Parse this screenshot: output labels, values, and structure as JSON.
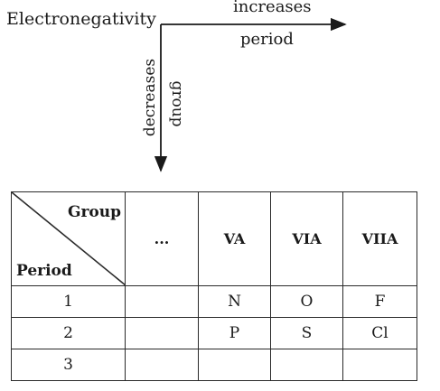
{
  "trend": {
    "title": "Electronegativity",
    "horizontal_top": "increases",
    "horizontal_bottom": "period",
    "vertical_left": "decreases",
    "vertical_right": "group"
  },
  "table": {
    "corner_group": "Group",
    "corner_period": "Period",
    "headers": [
      "...",
      "VA",
      "VIA",
      "VIIA"
    ],
    "rows": [
      {
        "period": "1",
        "cells": [
          "",
          "N",
          "O",
          "F"
        ]
      },
      {
        "period": "2",
        "cells": [
          "",
          "P",
          "S",
          "Cl"
        ]
      },
      {
        "period": "3",
        "cells": [
          "",
          "",
          "",
          ""
        ]
      }
    ]
  }
}
